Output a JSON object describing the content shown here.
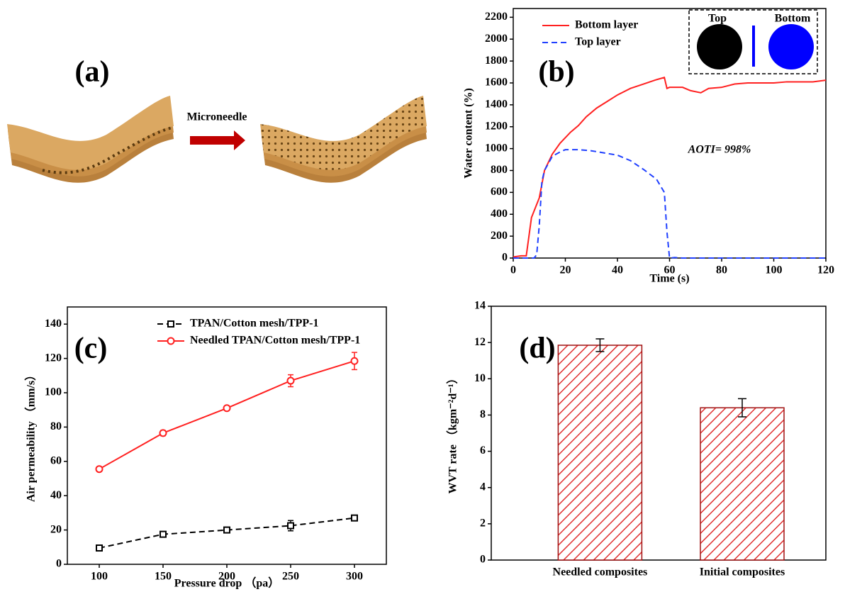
{
  "panel_a": {
    "label": "(a)",
    "arrow_label": "Microneedle"
  },
  "chart_data": [
    {
      "type": "line",
      "label": "(b)",
      "x_label": "Time (s)",
      "y_label": "Water content (%)",
      "annotation": "AOTI= 998%",
      "inset": {
        "left": "Top",
        "right": "Bottom",
        "left_color": "#000000",
        "right_color": "#0000ff"
      },
      "xlim": [
        0,
        120
      ],
      "xticks": [
        0,
        20,
        40,
        60,
        80,
        100,
        120
      ],
      "ylim": [
        0,
        2280
      ],
      "yticks": [
        0,
        200,
        400,
        600,
        800,
        1000,
        1200,
        1400,
        1600,
        1800,
        2000,
        2200
      ],
      "series": [
        {
          "name": "Bottom layer",
          "color": "#ff2020",
          "line_style": "solid",
          "x": [
            0,
            3,
            5,
            7,
            10,
            12,
            15,
            18,
            20,
            22,
            25,
            28,
            32,
            36,
            40,
            45,
            50,
            55,
            58,
            59,
            60,
            65,
            68,
            72,
            75,
            80,
            85,
            90,
            100,
            105,
            110,
            115,
            120
          ],
          "values": [
            10,
            20,
            20,
            370,
            550,
            800,
            950,
            1050,
            1100,
            1150,
            1210,
            1290,
            1370,
            1430,
            1490,
            1550,
            1590,
            1630,
            1650,
            1550,
            1560,
            1560,
            1530,
            1510,
            1550,
            1560,
            1590,
            1600,
            1600,
            1610,
            1610,
            1610,
            1625
          ]
        },
        {
          "name": "Top layer",
          "color": "#2040ff",
          "line_style": "dashed",
          "x": [
            0,
            5,
            8,
            9,
            10,
            11,
            12,
            15,
            18,
            20,
            25,
            30,
            35,
            40,
            45,
            50,
            55,
            58,
            59,
            60,
            62,
            65,
            120
          ],
          "values": [
            0,
            0,
            0,
            30,
            300,
            700,
            800,
            930,
            970,
            990,
            990,
            980,
            960,
            940,
            890,
            810,
            720,
            600,
            240,
            0,
            5,
            0,
            0
          ]
        }
      ]
    },
    {
      "type": "line",
      "label": "(c)",
      "x_label": "Pressure drop （pa）",
      "y_label": "Air permeability （mm/s）",
      "xlim": [
        75,
        325
      ],
      "xticks": [
        100,
        150,
        200,
        250,
        300
      ],
      "ylim": [
        0,
        150
      ],
      "yticks": [
        0,
        20,
        40,
        60,
        80,
        100,
        120,
        140
      ],
      "x": [
        100,
        150,
        200,
        250,
        300
      ],
      "series": [
        {
          "name": "TPAN/Cotton mesh/TPP-1",
          "color": "#000000",
          "line_style": "dashed",
          "marker": "square",
          "values": [
            9.5,
            17.5,
            20,
            22.5,
            27
          ],
          "errors": [
            1,
            1.5,
            1,
            3,
            1.5
          ]
        },
        {
          "name": "Needled TPAN/Cotton mesh/TPP-1",
          "color": "#ff2020",
          "line_style": "solid",
          "marker": "circle",
          "values": [
            55.5,
            76.5,
            91,
            107,
            118.5
          ],
          "errors": [
            1,
            1.5,
            1,
            3.5,
            5
          ]
        }
      ]
    },
    {
      "type": "bar",
      "label": "(d)",
      "y_label": "WVT rate （kgm⁻²d⁻¹）",
      "categories": [
        "Needled composites",
        "Initial composites"
      ],
      "values": [
        11.85,
        8.4
      ],
      "errors": [
        0.35,
        0.5
      ],
      "color": "#e03030",
      "ylim": [
        0,
        14
      ],
      "yticks": [
        0,
        2,
        4,
        6,
        8,
        10,
        12,
        14
      ]
    }
  ]
}
